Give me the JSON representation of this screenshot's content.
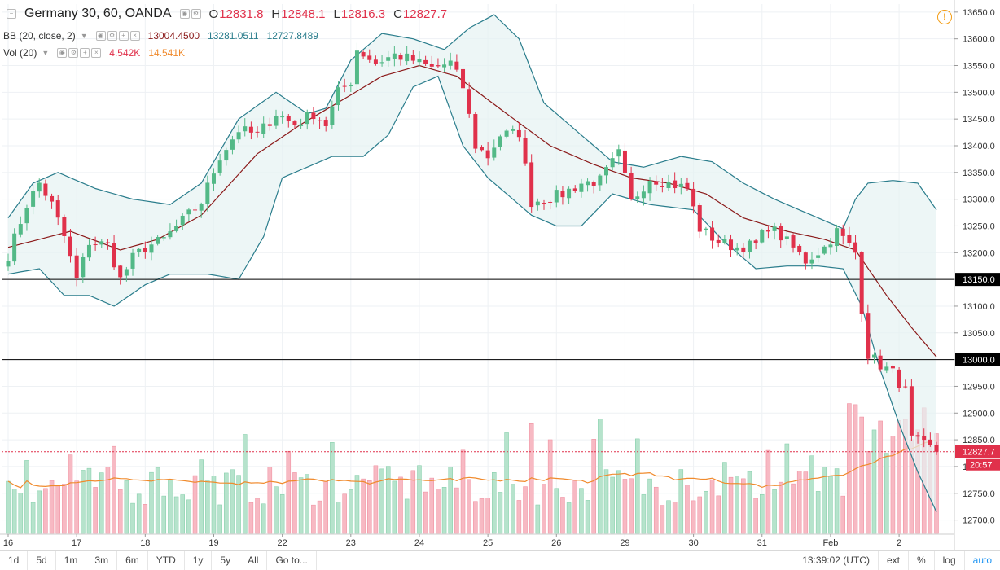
{
  "legend": {
    "symbol": "Germany 30, 60, OANDA",
    "ohlc": [
      {
        "k": "O",
        "v": "12831.8"
      },
      {
        "k": "H",
        "v": "12848.1"
      },
      {
        "k": "L",
        "v": "12816.3"
      },
      {
        "k": "C",
        "v": "12827.7"
      }
    ],
    "bb_label": "BB (20, close, 2)",
    "bb_values": [
      "13004.4500",
      "13281.0511",
      "12727.8489"
    ],
    "vol_label": "Vol (20)",
    "vol_values": [
      "4.542K",
      "14.541K"
    ]
  },
  "toolbar": {
    "ranges": [
      "1d",
      "5d",
      "1m",
      "3m",
      "6m",
      "YTD",
      "1y",
      "5y",
      "All"
    ],
    "goto": "Go to...",
    "clock": "13:39:02 (UTC)",
    "ext": "ext",
    "percent": "%",
    "log": "log",
    "auto": "auto"
  },
  "colors": {
    "up": "#53b987",
    "down": "#e0314b",
    "bb_basis": "#8b1a1a",
    "bb_band": "#2a7d8c",
    "vol_up": "#b6e3cc",
    "vol_down": "#f7b9c3",
    "vol_ma": "#f08a2c"
  },
  "chart_data": {
    "type": "candlestick",
    "title": "Germany 30, 60, OANDA",
    "ylim": [
      12675,
      13665
    ],
    "y_ticks": [
      12700,
      12750,
      12800,
      12850,
      12900,
      12950,
      13000,
      13050,
      13100,
      13150,
      13200,
      13250,
      13300,
      13350,
      13400,
      13450,
      13500,
      13550,
      13600,
      13650
    ],
    "x_ticks": [
      {
        "label": "16",
        "bar": 0
      },
      {
        "label": "17",
        "bar": 11
      },
      {
        "label": "18",
        "bar": 22
      },
      {
        "label": "19",
        "bar": 33
      },
      {
        "label": "22",
        "bar": 44
      },
      {
        "label": "23",
        "bar": 55
      },
      {
        "label": "24",
        "bar": 66
      },
      {
        "label": "25",
        "bar": 77
      },
      {
        "label": "26",
        "bar": 88
      },
      {
        "label": "29",
        "bar": 99
      },
      {
        "label": "30",
        "bar": 110
      },
      {
        "label": "31",
        "bar": 121
      },
      {
        "label": "Feb",
        "bar": 132
      },
      {
        "label": "2",
        "bar": 143
      }
    ],
    "horizontal_lines": [
      {
        "price": 13150,
        "label": "13150.0"
      },
      {
        "price": 13000,
        "label": "13000.0"
      }
    ],
    "last_price": {
      "price": 12827.7,
      "label": "12827.7",
      "countdown": "20:57"
    },
    "close_anchors": [
      [
        0,
        13195
      ],
      [
        3,
        13290
      ],
      [
        5,
        13330
      ],
      [
        7,
        13290
      ],
      [
        9,
        13230
      ],
      [
        11,
        13150
      ],
      [
        13,
        13220
      ],
      [
        16,
        13215
      ],
      [
        18,
        13150
      ],
      [
        20,
        13190
      ],
      [
        22,
        13210
      ],
      [
        25,
        13225
      ],
      [
        28,
        13260
      ],
      [
        31,
        13295
      ],
      [
        34,
        13380
      ],
      [
        37,
        13430
      ],
      [
        40,
        13420
      ],
      [
        43,
        13460
      ],
      [
        46,
        13440
      ],
      [
        49,
        13460
      ],
      [
        51,
        13440
      ],
      [
        53,
        13500
      ],
      [
        55,
        13520
      ],
      [
        56,
        13580
      ],
      [
        59,
        13555
      ],
      [
        62,
        13570
      ],
      [
        65,
        13560
      ],
      [
        68,
        13545
      ],
      [
        71,
        13555
      ],
      [
        73,
        13510
      ],
      [
        75,
        13400
      ],
      [
        77,
        13380
      ],
      [
        79,
        13420
      ],
      [
        82,
        13425
      ],
      [
        84,
        13295
      ],
      [
        86,
        13300
      ],
      [
        89,
        13310
      ],
      [
        92,
        13330
      ],
      [
        95,
        13335
      ],
      [
        98,
        13385
      ],
      [
        100,
        13295
      ],
      [
        103,
        13340
      ],
      [
        106,
        13330
      ],
      [
        109,
        13320
      ],
      [
        111,
        13245
      ],
      [
        114,
        13220
      ],
      [
        117,
        13210
      ],
      [
        120,
        13215
      ],
      [
        122,
        13250
      ],
      [
        125,
        13220
      ],
      [
        128,
        13185
      ],
      [
        131,
        13210
      ],
      [
        133,
        13240
      ],
      [
        136,
        13200
      ],
      [
        137,
        13095
      ],
      [
        138,
        13010
      ],
      [
        140,
        12990
      ],
      [
        142,
        12975
      ],
      [
        144,
        12940
      ],
      [
        145,
        12850
      ],
      [
        147,
        12840
      ],
      [
        149,
        12828
      ]
    ],
    "bb_basis_anchors": [
      [
        0,
        13210
      ],
      [
        10,
        13240
      ],
      [
        18,
        13205
      ],
      [
        24,
        13225
      ],
      [
        31,
        13270
      ],
      [
        40,
        13385
      ],
      [
        47,
        13440
      ],
      [
        55,
        13495
      ],
      [
        60,
        13530
      ],
      [
        66,
        13550
      ],
      [
        72,
        13530
      ],
      [
        80,
        13460
      ],
      [
        87,
        13400
      ],
      [
        94,
        13365
      ],
      [
        100,
        13340
      ],
      [
        106,
        13330
      ],
      [
        112,
        13310
      ],
      [
        118,
        13265
      ],
      [
        125,
        13240
      ],
      [
        131,
        13225
      ],
      [
        136,
        13205
      ],
      [
        141,
        13120
      ],
      [
        145,
        13060
      ],
      [
        149,
        13005
      ]
    ],
    "bb_upper_anchors": [
      [
        0,
        13265
      ],
      [
        4,
        13330
      ],
      [
        8,
        13350
      ],
      [
        14,
        13320
      ],
      [
        20,
        13300
      ],
      [
        26,
        13290
      ],
      [
        31,
        13330
      ],
      [
        37,
        13450
      ],
      [
        43,
        13500
      ],
      [
        48,
        13460
      ],
      [
        51,
        13470
      ],
      [
        55,
        13560
      ],
      [
        60,
        13610
      ],
      [
        65,
        13600
      ],
      [
        70,
        13580
      ],
      [
        74,
        13620
      ],
      [
        78,
        13645
      ],
      [
        82,
        13600
      ],
      [
        86,
        13480
      ],
      [
        92,
        13420
      ],
      [
        97,
        13370
      ],
      [
        102,
        13360
      ],
      [
        108,
        13380
      ],
      [
        113,
        13370
      ],
      [
        118,
        13330
      ],
      [
        123,
        13300
      ],
      [
        128,
        13275
      ],
      [
        131,
        13260
      ],
      [
        134,
        13245
      ],
      [
        136,
        13300
      ],
      [
        138,
        13330
      ],
      [
        142,
        13335
      ],
      [
        146,
        13330
      ],
      [
        149,
        13280
      ]
    ],
    "bb_lower_anchors": [
      [
        0,
        13160
      ],
      [
        5,
        13170
      ],
      [
        9,
        13120
      ],
      [
        13,
        13120
      ],
      [
        17,
        13100
      ],
      [
        22,
        13140
      ],
      [
        26,
        13160
      ],
      [
        32,
        13160
      ],
      [
        37,
        13150
      ],
      [
        41,
        13230
      ],
      [
        44,
        13340
      ],
      [
        48,
        13360
      ],
      [
        52,
        13380
      ],
      [
        57,
        13380
      ],
      [
        61,
        13420
      ],
      [
        65,
        13510
      ],
      [
        69,
        13530
      ],
      [
        73,
        13400
      ],
      [
        77,
        13340
      ],
      [
        80,
        13310
      ],
      [
        84,
        13270
      ],
      [
        88,
        13250
      ],
      [
        92,
        13250
      ],
      [
        97,
        13310
      ],
      [
        103,
        13290
      ],
      [
        110,
        13280
      ],
      [
        115,
        13220
      ],
      [
        120,
        13170
      ],
      [
        125,
        13175
      ],
      [
        130,
        13175
      ],
      [
        134,
        13170
      ],
      [
        137,
        13100
      ],
      [
        140,
        12980
      ],
      [
        143,
        12880
      ],
      [
        146,
        12790
      ],
      [
        149,
        12715
      ]
    ],
    "volume_axis_max": 12000,
    "volume_series": {
      "name": "Vol (20)",
      "last": "4.542K",
      "ma_last": "14.541K"
    }
  }
}
